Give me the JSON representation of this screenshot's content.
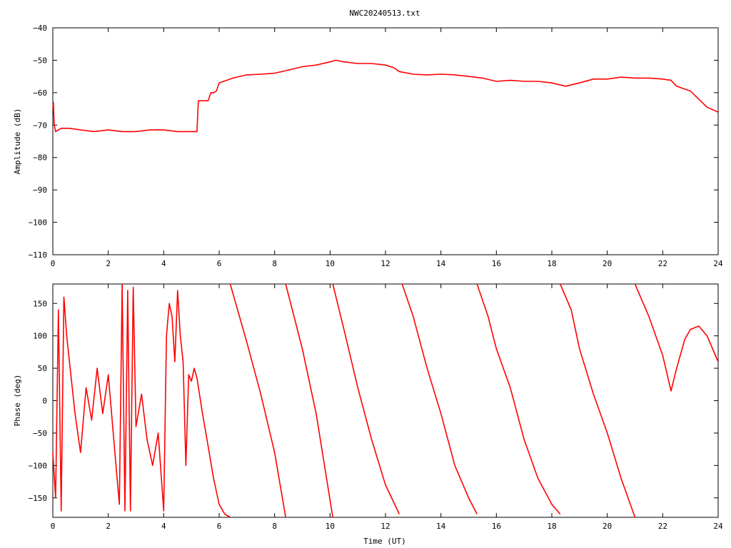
{
  "title": "NWC20240513.txt",
  "colors": {
    "series": "#ff0000",
    "axis": "#000000",
    "background": "#ffffff"
  },
  "chart_data": [
    {
      "type": "line",
      "ylabel": "Amplitude (dB)",
      "xlabel": "",
      "xlim": [
        0,
        24
      ],
      "ylim": [
        -110,
        -40
      ],
      "xticks": [
        0,
        2,
        4,
        6,
        8,
        10,
        12,
        14,
        16,
        18,
        20,
        22,
        24
      ],
      "yticks": [
        -110,
        -100,
        -90,
        -80,
        -70,
        -60,
        -50,
        -40
      ],
      "grid": false,
      "series": [
        {
          "x": [
            0,
            0.02,
            0.05,
            0.1,
            0.3,
            0.6,
            1.0,
            1.5,
            2.0,
            2.5,
            3.0,
            3.5,
            4.0,
            4.5,
            5.0,
            5.2,
            5.25,
            5.5,
            5.6,
            5.7,
            5.8,
            5.9,
            6.0,
            6.5,
            7.0,
            7.5,
            8.0,
            8.5,
            9.0,
            9.5,
            10.0,
            10.2,
            10.5,
            11.0,
            11.5,
            12.0,
            12.3,
            12.5,
            13.0,
            13.5,
            14.0,
            14.5,
            15.0,
            15.5,
            16.0,
            16.5,
            17.0,
            17.5,
            18.0,
            18.5,
            19.0,
            19.5,
            20.0,
            20.5,
            21.0,
            21.5,
            22.0,
            22.3,
            22.5,
            23.0,
            23.3,
            23.6,
            24.0
          ],
          "y": [
            -65,
            -63,
            -70,
            -72,
            -71,
            -71,
            -71.5,
            -72,
            -71.5,
            -72,
            -72,
            -71.5,
            -71.5,
            -72,
            -72,
            -72,
            -62.5,
            -62.5,
            -62.5,
            -60,
            -60,
            -59.5,
            -57,
            -55.5,
            -54.5,
            -54.3,
            -54,
            -53,
            -52,
            -51.5,
            -50.5,
            -50,
            -50.5,
            -51,
            -51,
            -51.5,
            -52.3,
            -53.5,
            -54.3,
            -54.5,
            -54.3,
            -54.5,
            -55,
            -55.5,
            -56.5,
            -56.2,
            -56.5,
            -56.5,
            -57,
            -58,
            -57,
            -55.8,
            -55.8,
            -55.2,
            -55.5,
            -55.5,
            -55.8,
            -56.2,
            -58,
            -59.5,
            -62,
            -64.5,
            -66
          ]
        }
      ]
    },
    {
      "type": "line",
      "ylabel": "Phase (deg)",
      "xlabel": "Time (UT)",
      "xlim": [
        0,
        24
      ],
      "ylim": [
        -180,
        180
      ],
      "xticks": [
        0,
        2,
        4,
        6,
        8,
        10,
        12,
        14,
        16,
        18,
        20,
        22,
        24
      ],
      "yticks": [
        -150,
        -100,
        -50,
        0,
        50,
        100,
        150
      ],
      "grid": false,
      "series": [
        {
          "x": [
            0,
            0.1,
            0.2,
            0.3,
            0.4,
            0.5,
            0.6,
            0.8,
            1.0,
            1.2,
            1.4,
            1.6,
            1.8,
            2.0,
            2.2,
            2.4,
            2.5,
            2.6,
            2.7,
            2.8,
            2.9,
            3.0,
            3.2,
            3.4,
            3.6,
            3.8,
            4.0,
            4.1,
            4.2,
            4.3,
            4.4,
            4.5,
            4.6,
            4.7,
            4.8,
            4.9,
            5.0,
            5.1,
            5.2,
            5.4,
            5.6,
            5.8,
            6.0,
            6.2,
            6.4
          ],
          "y": [
            -80,
            -150,
            140,
            -170,
            160,
            100,
            60,
            -20,
            -80,
            20,
            -30,
            50,
            -20,
            40,
            -60,
            -160,
            180,
            -170,
            170,
            -170,
            175,
            -40,
            10,
            -60,
            -100,
            -50,
            -170,
            100,
            150,
            130,
            60,
            170,
            100,
            60,
            -100,
            40,
            30,
            50,
            35,
            -20,
            -70,
            -120,
            -160,
            -175,
            -180
          ]
        },
        {
          "x": [
            6.4,
            7.0,
            7.5,
            8.0,
            8.4
          ],
          "y": [
            180,
            90,
            10,
            -80,
            -180
          ]
        },
        {
          "x": [
            8.4,
            9.0,
            9.5,
            10.1
          ],
          "y": [
            180,
            80,
            -20,
            -180
          ]
        },
        {
          "x": [
            10.1,
            10.5,
            11.0,
            11.5,
            12.0,
            12.5
          ],
          "y": [
            180,
            110,
            20,
            -60,
            -130,
            -175
          ]
        },
        {
          "x": [
            12.6,
            13.0,
            13.5,
            14.0,
            14.5,
            15.0,
            15.3
          ],
          "y": [
            180,
            130,
            50,
            -20,
            -100,
            -150,
            -175
          ]
        },
        {
          "x": [
            15.3,
            15.7,
            16.0,
            16.5,
            17.0,
            17.5,
            18.0,
            18.3
          ],
          "y": [
            180,
            130,
            80,
            20,
            -60,
            -120,
            -160,
            -175
          ]
        },
        {
          "x": [
            18.3,
            18.7,
            19.0,
            19.5,
            20.0,
            20.5,
            21.0
          ],
          "y": [
            180,
            140,
            80,
            10,
            -50,
            -120,
            -180
          ]
        },
        {
          "x": [
            21.0,
            21.5,
            22.0,
            22.3,
            22.5,
            22.8,
            23.0,
            23.3,
            23.6,
            24.0
          ],
          "y": [
            180,
            130,
            70,
            15,
            50,
            95,
            110,
            115,
            100,
            60
          ]
        }
      ]
    }
  ]
}
